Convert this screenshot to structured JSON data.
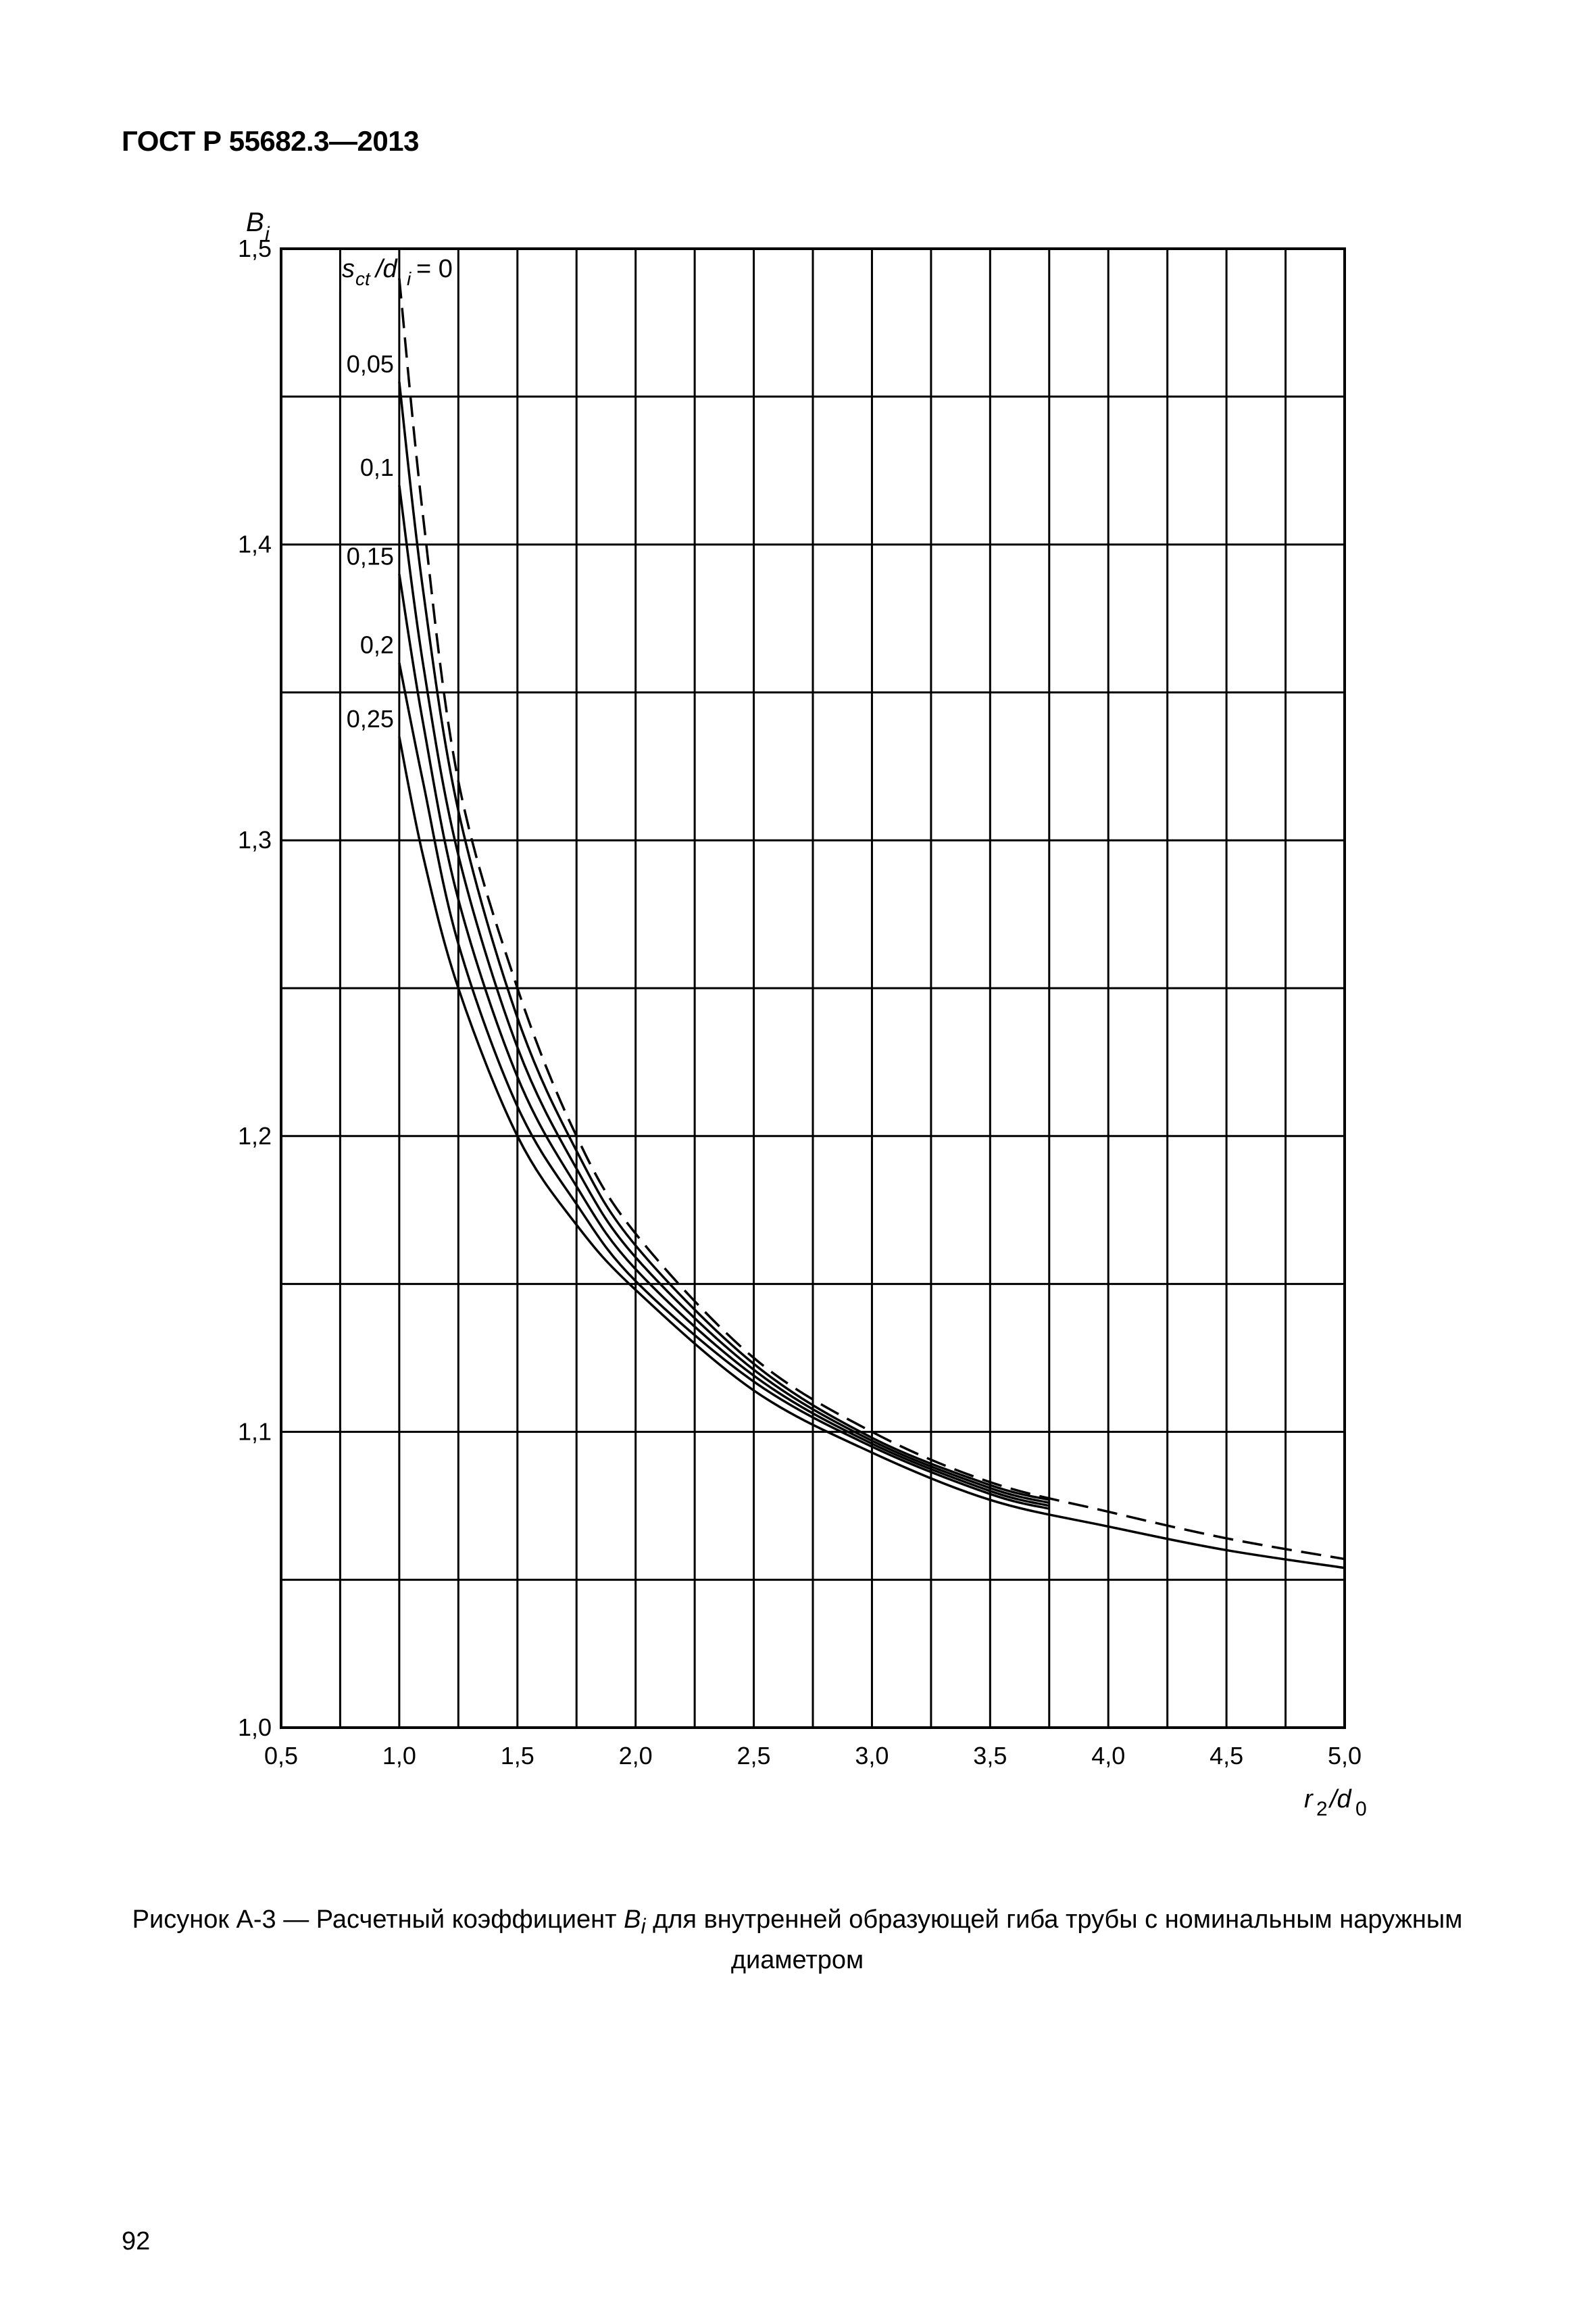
{
  "header": {
    "title": "ГОСТ Р 55682.3—2013"
  },
  "chart_data": {
    "type": "line",
    "title": "",
    "ylabel": "B",
    "ylabel_sub": "i",
    "xlabel": "r",
    "xlabel_sub": "2",
    "xlabel_tail": "/d",
    "xlabel_tail_sub": "0",
    "xlim": [
      0.5,
      5.0
    ],
    "ylim": [
      1.0,
      1.5
    ],
    "grid": true,
    "x_ticks": [
      "0,5",
      "1,0",
      "1,5",
      "2,0",
      "2,5",
      "3,0",
      "3,5",
      "4,0",
      "4,5",
      "5,0"
    ],
    "y_ticks": [
      "1,0",
      "1,1",
      "1,2",
      "1,3",
      "1,4",
      "1,5"
    ],
    "param_label": {
      "s": "s",
      "s_sub": "ct",
      "mid": "/d",
      "mid_sub": "i",
      "eq": "= 0"
    },
    "series": [
      {
        "name": "0",
        "dashed": true,
        "x": [
          1.0,
          1.1,
          1.25,
          1.5,
          1.75,
          2.0,
          2.5,
          3.0,
          3.5,
          4.0,
          4.5,
          5.0
        ],
        "y": [
          1.49,
          1.41,
          1.32,
          1.25,
          1.2,
          1.167,
          1.125,
          1.1,
          1.083,
          1.073,
          1.064,
          1.057
        ]
      },
      {
        "name": "0,05",
        "dashed": false,
        "x": [
          1.0,
          1.1,
          1.25,
          1.5,
          1.75,
          2.0,
          2.5,
          3.0,
          3.5,
          3.75
        ],
        "y": [
          1.455,
          1.385,
          1.31,
          1.24,
          1.195,
          1.163,
          1.123,
          1.098,
          1.082,
          1.077
        ]
      },
      {
        "name": "0,1",
        "dashed": false,
        "x": [
          1.0,
          1.1,
          1.25,
          1.5,
          1.75,
          2.0,
          2.5,
          3.0,
          3.5,
          3.75
        ],
        "y": [
          1.42,
          1.36,
          1.295,
          1.23,
          1.189,
          1.159,
          1.121,
          1.097,
          1.081,
          1.076
        ]
      },
      {
        "name": "0,15",
        "dashed": false,
        "x": [
          1.0,
          1.1,
          1.25,
          1.5,
          1.75,
          2.0,
          2.5,
          3.0,
          3.5,
          3.75
        ],
        "y": [
          1.39,
          1.34,
          1.28,
          1.22,
          1.183,
          1.155,
          1.119,
          1.096,
          1.08,
          1.075
        ]
      },
      {
        "name": "0,2",
        "dashed": false,
        "x": [
          1.0,
          1.1,
          1.25,
          1.5,
          1.75,
          2.0,
          2.5,
          3.0,
          3.5,
          3.75
        ],
        "y": [
          1.36,
          1.32,
          1.265,
          1.21,
          1.177,
          1.151,
          1.117,
          1.095,
          1.079,
          1.074
        ]
      },
      {
        "name": "0,25",
        "dashed": false,
        "x": [
          1.0,
          1.1,
          1.25,
          1.5,
          1.75,
          2.0,
          2.5,
          3.0,
          3.5,
          4.0,
          4.5,
          5.0
        ],
        "y": [
          1.335,
          1.295,
          1.25,
          1.2,
          1.17,
          1.148,
          1.114,
          1.093,
          1.077,
          1.068,
          1.06,
          1.054
        ]
      }
    ]
  },
  "caption": {
    "prefix": "Рисунок А-3 — Расчетный коэффициент ",
    "var": "B",
    "var_sub": "i",
    "suffix": " для внутренней образующей гиба трубы с номинальным наружным",
    "line2": "диаметром"
  },
  "page_number": "92"
}
